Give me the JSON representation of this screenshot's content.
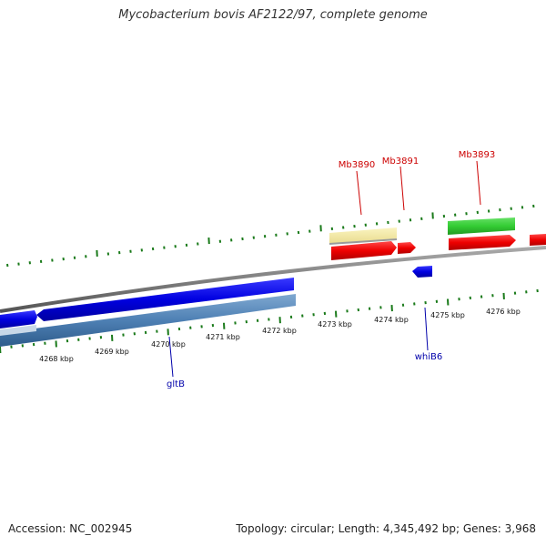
{
  "title": "Mycobacterium bovis AF2122/97, complete genome",
  "footer": {
    "accession": "Accession: NC_002945",
    "summary": "Topology: circular; Length: 4,345,492 bp; Genes: 3,968"
  },
  "scale_labels": [
    "4268 kbp",
    "4269 kbp",
    "4270 kbp",
    "4271 kbp",
    "4272 kbp",
    "4273 kbp",
    "4274 kbp",
    "4275 kbp",
    "4276 kbp"
  ],
  "gene_labels": {
    "mb3890": "Mb3890",
    "mb3891": "Mb3891",
    "mb3893": "Mb3893",
    "gltb": "gltB",
    "whib6": "whiB6"
  },
  "colors": {
    "red_label": "#cc0000",
    "blue_label": "#0000aa",
    "tick": "#1a7a1a",
    "backbone": "#7a7a7a"
  }
}
